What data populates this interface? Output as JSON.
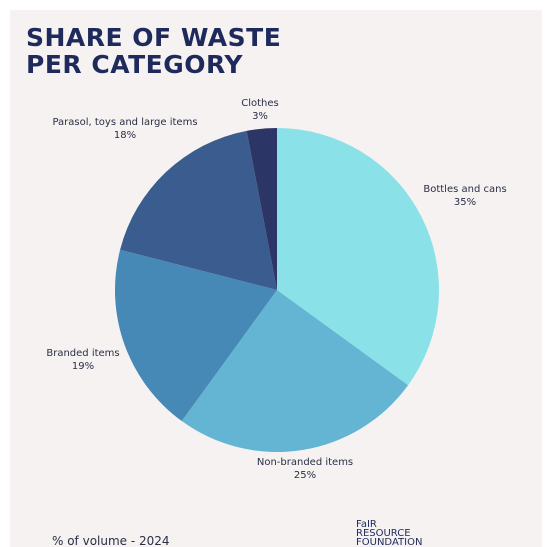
{
  "page": {
    "title_line1": "SHARE OF WASTE",
    "title_line2": "PER CATEGORY",
    "footer": "% of volume - 2024",
    "logo": [
      "FaIR",
      "RESOURCE",
      "FOUNDATION"
    ]
  },
  "colors": {
    "background": "#f5f2f1",
    "title": "#1f2a5c"
  },
  "chart_data": {
    "type": "pie",
    "title": "SHARE OF WASTE PER CATEGORY",
    "unit": "%",
    "slices": [
      {
        "label": "Bottles and cans",
        "value": 35,
        "display": "35%",
        "color": "#8ae2e8"
      },
      {
        "label": "Non-branded items",
        "value": 25,
        "display": "25%",
        "color": "#63b5d3"
      },
      {
        "label": "Branded items",
        "value": 19,
        "display": "19%",
        "color": "#4688b6"
      },
      {
        "label": "Parasol, toys and large items",
        "value": 18,
        "display": "18%",
        "color": "#3a5c8e"
      },
      {
        "label": "Clothes",
        "value": 3,
        "display": "3%",
        "color": "#2b3566"
      }
    ],
    "start": "12 o'clock",
    "direction": "clockwise",
    "legend": "none"
  }
}
